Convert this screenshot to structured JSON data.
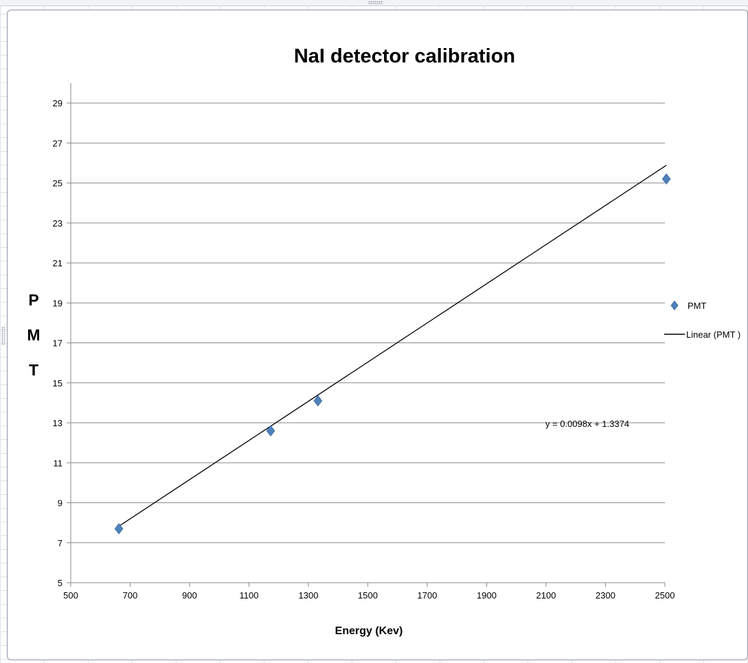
{
  "chart_data": {
    "type": "scatter",
    "title": "NaI detector calibration",
    "xlabel": "Energy (Kev)",
    "ylabel": "PMT",
    "xlim": [
      500,
      2500
    ],
    "ylim": [
      5,
      30
    ],
    "x_ticks": [
      500,
      700,
      900,
      1100,
      1300,
      1500,
      1700,
      1900,
      2100,
      2300,
      2500
    ],
    "y_ticks": [
      5,
      7,
      9,
      11,
      13,
      15,
      17,
      19,
      21,
      23,
      25,
      27,
      29
    ],
    "grid": "horizontal",
    "legend_position": "right",
    "series": [
      {
        "name": "PMT",
        "marker": "diamond",
        "color": "#4f81bd",
        "x": [
          662,
          1173,
          1332,
          2505
        ],
        "y": [
          7.7,
          12.6,
          14.1,
          25.2
        ]
      }
    ],
    "trendline": {
      "name": "Linear (PMT )",
      "type": "linear",
      "slope": 0.0098,
      "intercept": 1.3374,
      "x_range": [
        662,
        2505
      ],
      "color": "#000000",
      "equation": "y = 0.0098x + 1.3374"
    }
  }
}
